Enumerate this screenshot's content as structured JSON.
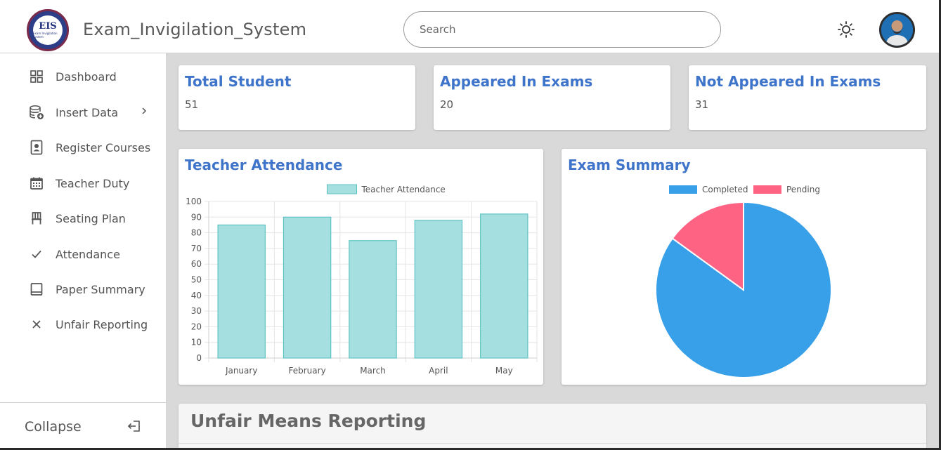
{
  "app": {
    "title": "Exam_Invigilation_System",
    "logo_text": "EIS",
    "logo_subtext": "Exam Invigilation System"
  },
  "search": {
    "placeholder": "Search",
    "value": ""
  },
  "sidebar": {
    "items": [
      {
        "label": "Dashboard",
        "icon": "grid-icon"
      },
      {
        "label": "Insert Data",
        "icon": "database-add-icon",
        "has_submenu": true
      },
      {
        "label": "Register Courses",
        "icon": "id-badge-icon"
      },
      {
        "label": "Teacher Duty",
        "icon": "calendar-icon"
      },
      {
        "label": "Seating Plan",
        "icon": "chair-icon"
      },
      {
        "label": "Attendance",
        "icon": "check-icon"
      },
      {
        "label": "Paper Summary",
        "icon": "paper-icon"
      },
      {
        "label": "Unfair Reporting",
        "icon": "x-icon"
      }
    ],
    "collapse_label": "Collapse"
  },
  "stats": [
    {
      "title": "Total Student",
      "value": "51"
    },
    {
      "title": "Appeared In Exams",
      "value": "20"
    },
    {
      "title": "Not Appeared In Exams",
      "value": "31"
    }
  ],
  "attendance_chart": {
    "title": "Teacher Attendance"
  },
  "summary_chart": {
    "title": "Exam Summary"
  },
  "unfair_section": {
    "title": "Unfair Means Reporting"
  },
  "colors": {
    "accent": "#3e74c9",
    "bar_fill": "#a6dfe0",
    "bar_stroke": "#5fc3c3",
    "pie_completed": "#38a0e8",
    "pie_pending": "#fe6384"
  },
  "chart_data": [
    {
      "type": "bar",
      "title": "",
      "categories": [
        "January",
        "February",
        "March",
        "April",
        "May"
      ],
      "series": [
        {
          "name": "Teacher Attendance",
          "values": [
            85,
            90,
            75,
            88,
            92
          ]
        }
      ],
      "ylim": [
        0,
        100
      ],
      "yticks": [
        0,
        10,
        20,
        30,
        40,
        50,
        60,
        70,
        80,
        90,
        100
      ],
      "grid": true,
      "legend": "top"
    },
    {
      "type": "pie",
      "title": "",
      "labels": [
        "Completed",
        "Pending"
      ],
      "values": [
        85,
        15
      ],
      "legend": "top"
    }
  ]
}
